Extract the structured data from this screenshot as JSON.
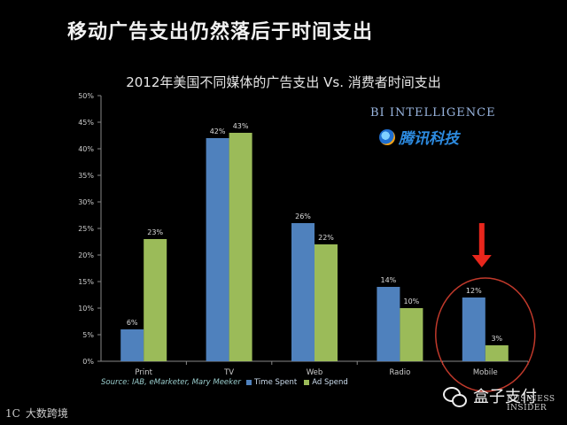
{
  "headline": "移动广告支出仍然落后于时间支出",
  "branding": {
    "bi_intelligence": "BI INTELLIGENCE",
    "tencent_tech": "腾讯科技",
    "wechat_account": "盒子支付",
    "business_insider": [
      "BUSINESS",
      "INSIDER"
    ],
    "bottom_left_mark": "1C",
    "bottom_left_text": "大数跨境"
  },
  "source_note": "Source: IAB, eMarketer, Mary Meeker",
  "colors": {
    "time_spent": "#4f81bd",
    "ad_spend": "#9bbb59",
    "arrow": "#e8261c",
    "circle": "#c0392b"
  },
  "chart_data": {
    "type": "bar",
    "title": "2012年美国不同媒体的广告支出 Vs. 消费者时间支出",
    "categories": [
      "Print",
      "TV",
      "Web",
      "Radio",
      "Mobile"
    ],
    "series": [
      {
        "name": "Time Spent",
        "values": [
          6,
          42,
          26,
          14,
          12
        ]
      },
      {
        "name": "Ad Spend",
        "values": [
          23,
          43,
          22,
          10,
          3
        ]
      }
    ],
    "data_labels": [
      [
        "6%",
        "42%",
        "26%",
        "14%",
        "12%"
      ],
      [
        "23%",
        "43%",
        "22%",
        "10%",
        "3%"
      ]
    ],
    "y_ticks": [
      "0%",
      "5%",
      "10%",
      "15%",
      "20%",
      "25%",
      "30%",
      "35%",
      "40%",
      "45%",
      "50%"
    ],
    "ylim": [
      0,
      50
    ],
    "xlabel": "",
    "ylabel": "",
    "legend_position": "bottom",
    "grid": false,
    "highlight_category": "Mobile"
  }
}
